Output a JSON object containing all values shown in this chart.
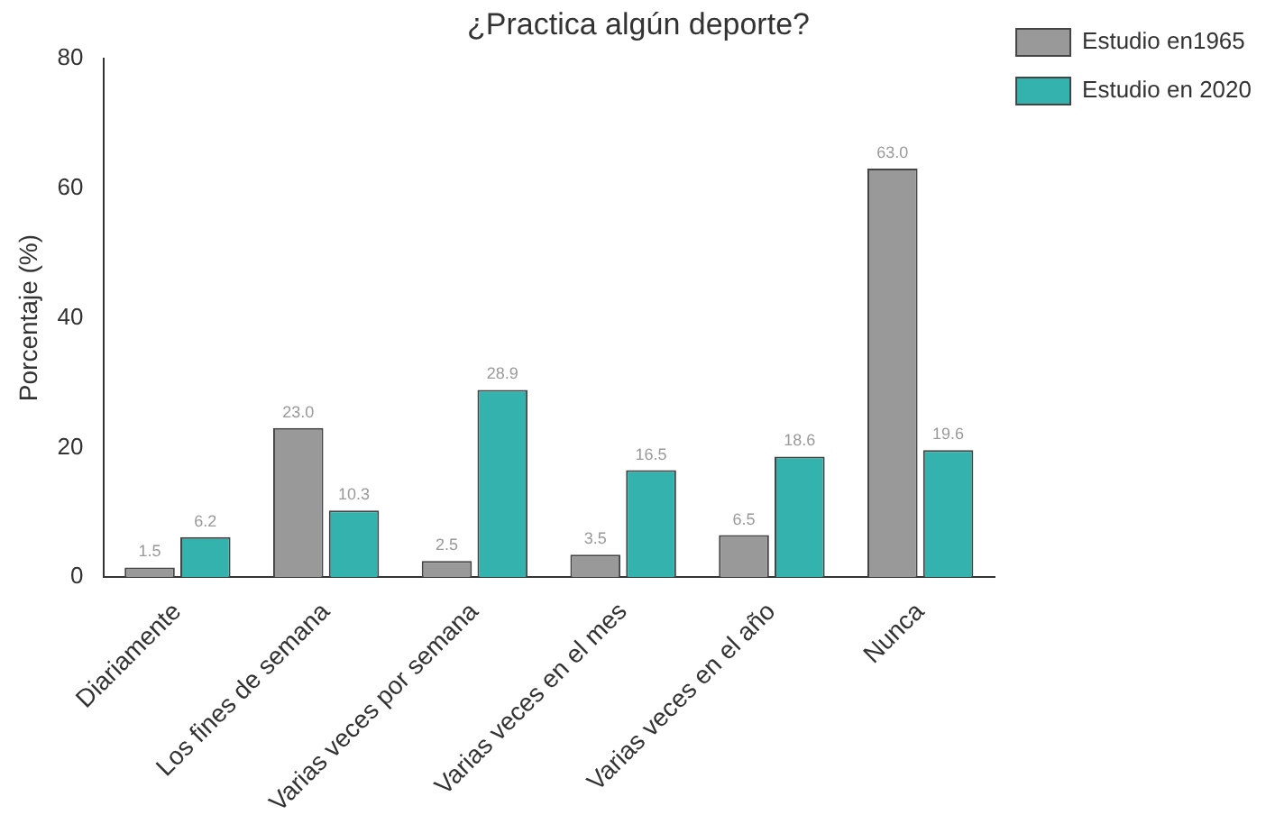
{
  "chart_data": {
    "type": "bar",
    "title": "¿Practica algún deporte?",
    "ylabel": "Porcentaje (%)",
    "categories": [
      "Diariamente",
      "Los fines de semana",
      "Varias veces por semana",
      "Varias veces en el mes",
      "Varias veces en el año",
      "Nunca"
    ],
    "series": [
      {
        "name": "Estudio en1965",
        "color": "#999999",
        "values": [
          1.5,
          23.0,
          2.5,
          3.5,
          6.5,
          63.0
        ],
        "value_labels": [
          "1.5",
          "23.0",
          "2.5",
          "3.5",
          "6.5",
          "63.0"
        ]
      },
      {
        "name": "Estudio en 2020",
        "color": "#34b3ae",
        "values": [
          6.2,
          10.3,
          28.9,
          16.5,
          18.6,
          19.6
        ],
        "value_labels": [
          "6.2",
          "10.3",
          "28.9",
          "16.5",
          "18.6",
          "19.6"
        ]
      }
    ],
    "ylim": [
      0,
      80
    ],
    "yticks": [
      0,
      20,
      40,
      60,
      80
    ],
    "grid": false,
    "legend": "top right"
  }
}
